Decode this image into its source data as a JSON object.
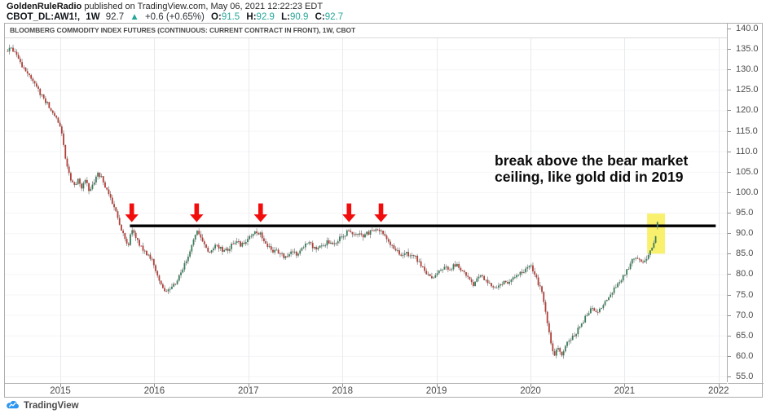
{
  "header": {
    "author": "GoldenRuleRadio",
    "published": " published on TradingView.com, May 06, 2021 12:22:23 EDT",
    "symbol_line": {
      "symbol": "CBOT_DL:AW1!,",
      "interval": "1W",
      "last": "92.7",
      "up_arrow": "▲",
      "change": "+0.6 (+0.65%)",
      "o_label": "O:",
      "o": "91.5",
      "h_label": "H:",
      "h": "92.9",
      "l_label": "L:",
      "l": "90.9",
      "c_label": "C:",
      "c": "92.7"
    }
  },
  "footer": {
    "logo_text": "TradingView"
  },
  "colors": {
    "up": "#3b7d5c",
    "down": "#b23f38",
    "wick": "#797979",
    "teal": "#26a69a",
    "arrow_red": "#f20d0d",
    "highlight_yellow": "#f8ee55",
    "line_black": "#000000",
    "grid_v": "#e9eaee",
    "grid_h": "#f4f5f7",
    "logo_blue": "#2c96f0"
  },
  "chart_data": {
    "type": "candlestick",
    "title": "BLOOMBERG COMMODITY INDEX FUTURES (CONTINUOUS: CURRENT CONTRACT IN FRONT), 1W, CBOT",
    "timeframe": "1W",
    "exchange": "CBOT",
    "x_ticks": [
      "2015",
      "2016",
      "2017",
      "2018",
      "2019",
      "2020",
      "2021",
      "2022"
    ],
    "y_ticks": [
      140.0,
      135.0,
      130.0,
      125.0,
      120.0,
      115.0,
      110.0,
      105.0,
      100.0,
      95.0,
      90.0,
      85.0,
      80.0,
      75.0,
      70.0,
      65.0,
      60.0,
      55.0
    ],
    "ylim": [
      53.5,
      141.2
    ],
    "x_range": [
      2014.42,
      2022.05
    ],
    "series_start": 2014.44,
    "series_end": 2021.35,
    "resolution": "weekly candles; price path read from chart as anchor points [year, price]",
    "anchors": [
      [
        2014.44,
        134.5
      ],
      [
        2014.47,
        135.8
      ],
      [
        2014.52,
        134.0
      ],
      [
        2014.58,
        131.0
      ],
      [
        2014.65,
        128.8
      ],
      [
        2014.72,
        126.5
      ],
      [
        2014.79,
        124.0
      ],
      [
        2014.85,
        122.0
      ],
      [
        2014.92,
        119.8
      ],
      [
        2014.98,
        117.2
      ],
      [
        2015.02,
        113.5
      ],
      [
        2015.06,
        107.5
      ],
      [
        2015.1,
        103.8
      ],
      [
        2015.15,
        102.0
      ],
      [
        2015.19,
        103.0
      ],
      [
        2015.23,
        101.0
      ],
      [
        2015.27,
        103.2
      ],
      [
        2015.31,
        100.3
      ],
      [
        2015.35,
        101.8
      ],
      [
        2015.4,
        104.8
      ],
      [
        2015.44,
        103.5
      ],
      [
        2015.48,
        101.0
      ],
      [
        2015.52,
        99.0
      ],
      [
        2015.56,
        96.8
      ],
      [
        2015.6,
        94.5
      ],
      [
        2015.65,
        91.0
      ],
      [
        2015.69,
        88.0
      ],
      [
        2015.72,
        87.0
      ],
      [
        2015.76,
        90.8
      ],
      [
        2015.8,
        89.0
      ],
      [
        2015.84,
        87.5
      ],
      [
        2015.88,
        86.0
      ],
      [
        2015.92,
        85.0
      ],
      [
        2015.96,
        84.0
      ],
      [
        2016.0,
        82.0
      ],
      [
        2016.04,
        79.0
      ],
      [
        2016.08,
        76.8
      ],
      [
        2016.12,
        75.2
      ],
      [
        2016.16,
        76.0
      ],
      [
        2016.2,
        77.0
      ],
      [
        2016.24,
        78.5
      ],
      [
        2016.28,
        80.5
      ],
      [
        2016.33,
        83.0
      ],
      [
        2016.38,
        86.0
      ],
      [
        2016.42,
        88.5
      ],
      [
        2016.46,
        90.3
      ],
      [
        2016.5,
        88.8
      ],
      [
        2016.54,
        86.5
      ],
      [
        2016.58,
        84.8
      ],
      [
        2016.62,
        86.0
      ],
      [
        2016.66,
        87.3
      ],
      [
        2016.7,
        86.3
      ],
      [
        2016.74,
        85.3
      ],
      [
        2016.79,
        86.3
      ],
      [
        2016.83,
        87.3
      ],
      [
        2016.88,
        87.8
      ],
      [
        2016.92,
        87.0
      ],
      [
        2016.96,
        88.0
      ],
      [
        2017.0,
        88.6
      ],
      [
        2017.05,
        89.6
      ],
      [
        2017.09,
        90.3
      ],
      [
        2017.13,
        90.0
      ],
      [
        2017.17,
        88.2
      ],
      [
        2017.22,
        86.5
      ],
      [
        2017.26,
        85.5
      ],
      [
        2017.3,
        86.0
      ],
      [
        2017.34,
        84.8
      ],
      [
        2017.39,
        84.2
      ],
      [
        2017.43,
        85.0
      ],
      [
        2017.47,
        85.6
      ],
      [
        2017.51,
        85.0
      ],
      [
        2017.55,
        86.0
      ],
      [
        2017.6,
        87.3
      ],
      [
        2017.64,
        88.0
      ],
      [
        2017.68,
        86.8
      ],
      [
        2017.72,
        86.0
      ],
      [
        2017.76,
        86.6
      ],
      [
        2017.81,
        87.4
      ],
      [
        2017.85,
        88.0
      ],
      [
        2017.89,
        87.2
      ],
      [
        2017.93,
        87.8
      ],
      [
        2017.97,
        88.6
      ],
      [
        2018.01,
        89.6
      ],
      [
        2018.05,
        90.2
      ],
      [
        2018.09,
        90.6
      ],
      [
        2018.13,
        89.2
      ],
      [
        2018.17,
        89.8
      ],
      [
        2018.22,
        89.3
      ],
      [
        2018.26,
        89.9
      ],
      [
        2018.3,
        90.3
      ],
      [
        2018.34,
        90.7
      ],
      [
        2018.38,
        91.2
      ],
      [
        2018.42,
        90.5
      ],
      [
        2018.46,
        89.3
      ],
      [
        2018.5,
        87.5
      ],
      [
        2018.55,
        86.2
      ],
      [
        2018.59,
        85.4
      ],
      [
        2018.63,
        84.6
      ],
      [
        2018.67,
        85.2
      ],
      [
        2018.72,
        84.2
      ],
      [
        2018.76,
        84.8
      ],
      [
        2018.8,
        83.4
      ],
      [
        2018.84,
        82.0
      ],
      [
        2018.88,
        80.6
      ],
      [
        2018.93,
        79.4
      ],
      [
        2018.97,
        78.8
      ],
      [
        2019.01,
        80.0
      ],
      [
        2019.06,
        81.2
      ],
      [
        2019.1,
        81.8
      ],
      [
        2019.14,
        81.2
      ],
      [
        2019.18,
        81.9
      ],
      [
        2019.22,
        82.3
      ],
      [
        2019.26,
        81.3
      ],
      [
        2019.31,
        79.8
      ],
      [
        2019.35,
        78.4
      ],
      [
        2019.39,
        77.4
      ],
      [
        2019.43,
        78.8
      ],
      [
        2019.47,
        79.4
      ],
      [
        2019.51,
        78.7
      ],
      [
        2019.55,
        77.9
      ],
      [
        2019.6,
        77.1
      ],
      [
        2019.64,
        76.5
      ],
      [
        2019.68,
        77.6
      ],
      [
        2019.72,
        78.3
      ],
      [
        2019.76,
        77.8
      ],
      [
        2019.81,
        78.6
      ],
      [
        2019.85,
        79.4
      ],
      [
        2019.89,
        80.1
      ],
      [
        2019.93,
        80.8
      ],
      [
        2019.97,
        81.5
      ],
      [
        2020.01,
        81.8
      ],
      [
        2020.05,
        79.6
      ],
      [
        2020.09,
        77.4
      ],
      [
        2020.13,
        74.6
      ],
      [
        2020.17,
        69.8
      ],
      [
        2020.21,
        63.4
      ],
      [
        2020.25,
        60.2
      ],
      [
        2020.29,
        61.6
      ],
      [
        2020.33,
        60.4
      ],
      [
        2020.37,
        62.4
      ],
      [
        2020.41,
        63.6
      ],
      [
        2020.45,
        64.6
      ],
      [
        2020.49,
        65.8
      ],
      [
        2020.53,
        67.4
      ],
      [
        2020.57,
        69.0
      ],
      [
        2020.61,
        70.4
      ],
      [
        2020.66,
        71.8
      ],
      [
        2020.7,
        70.8
      ],
      [
        2020.74,
        71.8
      ],
      [
        2020.78,
        72.8
      ],
      [
        2020.82,
        74.0
      ],
      [
        2020.86,
        75.4
      ],
      [
        2020.9,
        76.8
      ],
      [
        2020.95,
        78.2
      ],
      [
        2020.99,
        79.8
      ],
      [
        2021.03,
        81.2
      ],
      [
        2021.07,
        82.8
      ],
      [
        2021.11,
        84.4
      ],
      [
        2021.15,
        84.0
      ],
      [
        2021.19,
        83.0
      ],
      [
        2021.23,
        83.8
      ],
      [
        2021.27,
        85.2
      ],
      [
        2021.31,
        87.0
      ],
      [
        2021.33,
        89.5
      ],
      [
        2021.35,
        92.7
      ]
    ],
    "last_candle": {
      "open": 91.5,
      "high": 92.9,
      "low": 90.9,
      "close": 92.7
    },
    "resistance_line": {
      "price": 91.8,
      "x_from": 2015.74,
      "x_to": 2021.97
    },
    "arrows_x": [
      2015.76,
      2016.45,
      2017.13,
      2018.07,
      2018.41
    ],
    "highlight_box": {
      "x_from": 2021.24,
      "x_to": 2021.43,
      "price_from": 85.0,
      "price_to": 94.8
    },
    "annotation": {
      "line1": "break above the bear market",
      "line2": "ceiling, like gold did in 2019"
    }
  }
}
